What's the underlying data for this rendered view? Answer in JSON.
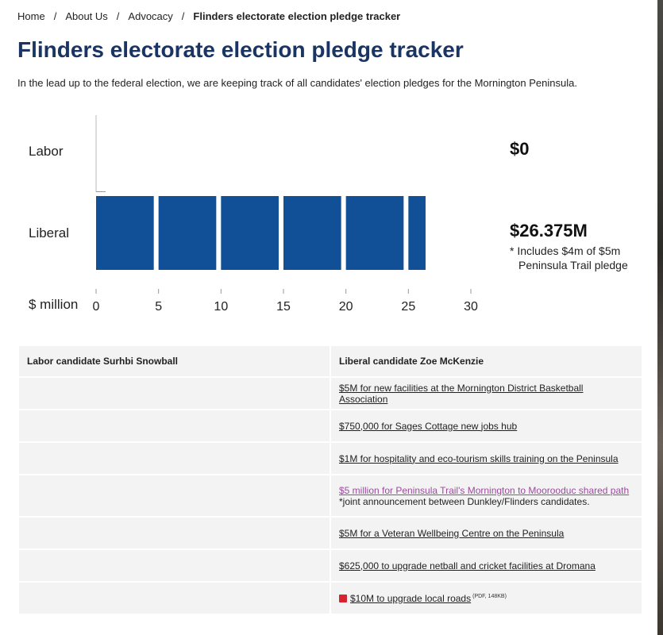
{
  "breadcrumb": {
    "items": [
      "Home",
      "About Us",
      "Advocacy"
    ],
    "current": "Flinders electorate election pledge tracker",
    "separator": "/"
  },
  "page": {
    "title": "Flinders electorate election pledge tracker",
    "intro": "In the lead up to the federal election, we are keeping track of all candidates' election pledges for the Mornington Peninsula."
  },
  "chart_data": {
    "type": "bar",
    "orientation": "horizontal",
    "categories": [
      "Labor",
      "Liberal"
    ],
    "values": [
      0,
      26.375
    ],
    "segment_step": 5,
    "xlabel": "$ million",
    "xlim": [
      0,
      30
    ],
    "xticks": [
      "0",
      "5",
      "10",
      "15",
      "20",
      "25",
      "30"
    ],
    "color": "#114f97",
    "totals": [
      "$0",
      "$26.375M"
    ],
    "annotation": [
      "* Includes $4m of $5m",
      "Peninsula Trail pledge"
    ]
  },
  "table": {
    "headers": [
      "Labor candidate Surhbi Snowball",
      "Liberal candidate Zoe McKenzie"
    ],
    "rows": [
      {
        "labor": "",
        "liberal": "$5M for new facilities at the Mornington District Basketball Association"
      },
      {
        "labor": "",
        "liberal": "$750,000 for Sages Cottage new jobs hub"
      },
      {
        "labor": "",
        "liberal": "$1M for hospitality and eco-tourism skills training on the Peninsula"
      },
      {
        "labor": "",
        "liberal": "$5 million for Peninsula Trail's Mornington to Moorooduc shared path",
        "note": "*joint announcement between Dunkley/Flinders candidates."
      },
      {
        "labor": "",
        "liberal": "$5M for a Veteran Wellbeing Centre on the Peninsula"
      },
      {
        "labor": "",
        "liberal": "$625,000 to upgrade netball and cricket facilities at Dromana"
      },
      {
        "labor": "",
        "liberal": "$10M to upgrade local roads",
        "meta": "(PDF, 148KB)"
      }
    ]
  },
  "colors": {
    "heading": "#1a3564",
    "bar": "#114f97",
    "visited_link": "#9b4a9c"
  }
}
